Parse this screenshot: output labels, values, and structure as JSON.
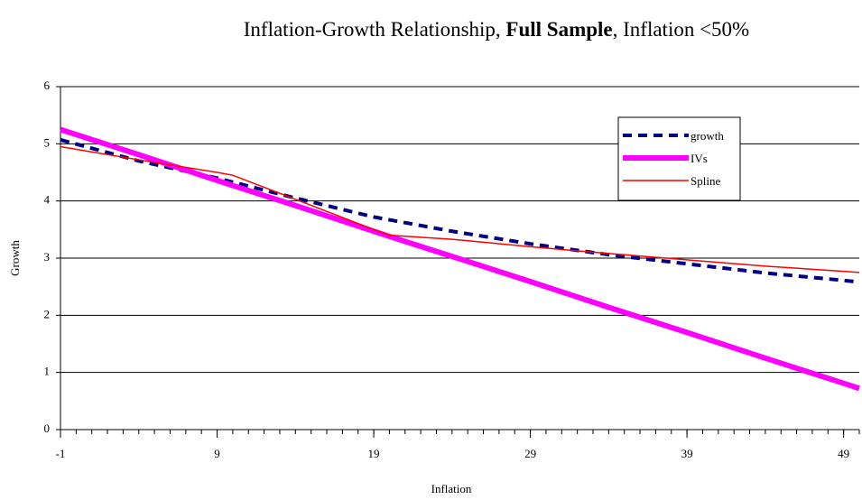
{
  "chart_data": {
    "type": "line",
    "title": [
      {
        "text": "Inflation-Growth Relationship, ",
        "bold": false
      },
      {
        "text": "Full Sample",
        "bold": true
      },
      {
        "text": ", Inflation <50%",
        "bold": false
      }
    ],
    "xlabel": "Inflation",
    "ylabel": "Growth",
    "x": [
      -1,
      4,
      9,
      10,
      14,
      19,
      20,
      24,
      29,
      34,
      39,
      44,
      49,
      50
    ],
    "series": [
      {
        "name": "growth",
        "color": "#000080",
        "dashed": true,
        "width": 4,
        "values": [
          5.07,
          4.7,
          4.4,
          4.33,
          4.05,
          3.72,
          3.67,
          3.47,
          3.25,
          3.06,
          2.9,
          2.74,
          2.61,
          2.58
        ]
      },
      {
        "name": "IVs",
        "color": "#ff00ff",
        "dashed": false,
        "width": 6,
        "values": [
          5.25,
          4.81,
          4.36,
          4.27,
          3.92,
          3.47,
          3.38,
          3.03,
          2.59,
          2.14,
          1.7,
          1.25,
          0.81,
          0.72
        ]
      },
      {
        "name": "Spline",
        "color": "#ff0000",
        "dashed": false,
        "width": 1.5,
        "values": [
          4.95,
          4.72,
          4.5,
          4.45,
          4.03,
          3.5,
          3.4,
          3.33,
          3.2,
          3.08,
          2.97,
          2.86,
          2.77,
          2.75
        ]
      }
    ],
    "xlim": [
      -1,
      50
    ],
    "xticks": [
      -1,
      9,
      19,
      29,
      39,
      49
    ],
    "xminorticks": [
      -1,
      0,
      1,
      2,
      3,
      4,
      5,
      6,
      7,
      8,
      9,
      10,
      11,
      12,
      13,
      14,
      15,
      16,
      17,
      18,
      19,
      20,
      21,
      22,
      23,
      24,
      25,
      26,
      27,
      28,
      29,
      30,
      31,
      32,
      33,
      34,
      35,
      36,
      37,
      38,
      39,
      40,
      41,
      42,
      43,
      44,
      45,
      46,
      47,
      48,
      49,
      50
    ],
    "ylim": [
      0,
      6
    ],
    "yticks": [
      0,
      1,
      2,
      3,
      4,
      5,
      6
    ],
    "grid": true,
    "legend": "upper right"
  }
}
